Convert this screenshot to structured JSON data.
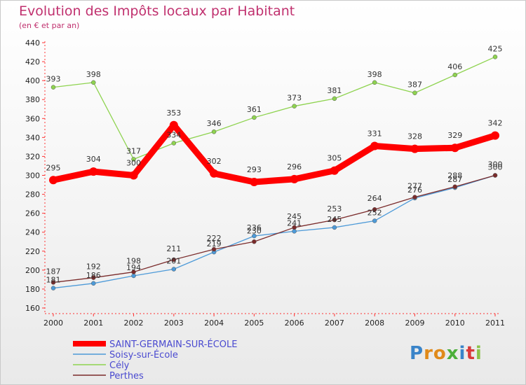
{
  "chart_data": {
    "type": "line",
    "title": "Evolution des Impôts locaux par Habitant",
    "subtitle": "(en € et par an)",
    "xlabel": "",
    "ylabel": "",
    "categories": [
      "2000",
      "2001",
      "2002",
      "2003",
      "2004",
      "2005",
      "2006",
      "2007",
      "2008",
      "2009",
      "2010",
      "2011"
    ],
    "ylim": [
      160,
      440
    ],
    "yticks": [
      160,
      180,
      200,
      220,
      240,
      260,
      280,
      300,
      320,
      340,
      360,
      380,
      400,
      420,
      440
    ],
    "grid": false,
    "legend_position": "bottom-left",
    "series": [
      {
        "name": "SAINT-GERMAIN-SUR-ÉCOLE",
        "color": "#ff0000",
        "values": [
          295,
          304,
          300,
          353,
          302,
          293,
          296,
          305,
          331,
          328,
          329,
          342
        ],
        "labels": [
          "295",
          "304",
          "300",
          "353",
          "302",
          "293",
          "296",
          "305",
          "331",
          "328",
          "329",
          "342"
        ]
      },
      {
        "name": "Soisy-sur-École",
        "color": "#4d9ad8",
        "values": [
          181,
          186,
          194,
          201,
          219,
          236,
          241,
          245,
          252,
          276,
          287,
          300
        ],
        "labels": [
          "181",
          "186",
          "194",
          "201",
          "219",
          "236",
          "241",
          "245",
          "252",
          "276",
          "287",
          "300"
        ]
      },
      {
        "name": "Cély",
        "color": "#8ed34f",
        "values": [
          393,
          398,
          317,
          334,
          346,
          361,
          373,
          381,
          398,
          387,
          406,
          425
        ],
        "labels": [
          "393",
          "398",
          "317",
          "334",
          "346",
          "361",
          "373",
          "381",
          "398",
          "387",
          "406",
          "425"
        ]
      },
      {
        "name": "Perthes",
        "color": "#7a2b2b",
        "values": [
          187,
          192,
          198,
          211,
          222,
          230,
          245,
          253,
          264,
          277,
          288,
          300
        ],
        "labels": [
          "187",
          "192",
          "198",
          "211",
          "222",
          "230",
          "245",
          "253",
          "264",
          "277",
          "288",
          "300"
        ]
      }
    ]
  },
  "logo": {
    "text": "Proxiti"
  }
}
